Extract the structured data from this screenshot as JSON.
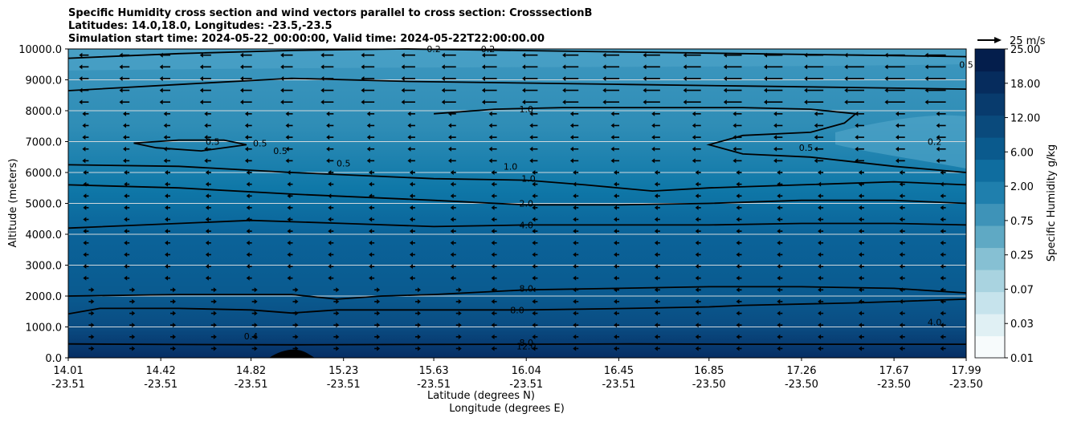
{
  "chart_data": {
    "type": "contourf",
    "title_lines": [
      "Specific Humidity cross section and wind vectors parallel to cross section: CrosssectionB",
      "Latitudes: 14.0,18.0, Longitudes: -23.5,-23.5",
      "Simulation start time: 2024-05-22_00:00:00, Valid time: 2024-05-22T22:00:00.00"
    ],
    "xlabel": "Latitude (degrees N)",
    "xlabel2": "Longitude (degrees E)",
    "ylabel": "Altitude (meters)",
    "x_ticks": [
      {
        "lat": "14.01",
        "lon": "-23.51"
      },
      {
        "lat": "14.42",
        "lon": "-23.51"
      },
      {
        "lat": "14.82",
        "lon": "-23.51"
      },
      {
        "lat": "15.23",
        "lon": "-23.51"
      },
      {
        "lat": "15.63",
        "lon": "-23.51"
      },
      {
        "lat": "16.04",
        "lon": "-23.51"
      },
      {
        "lat": "16.45",
        "lon": "-23.51"
      },
      {
        "lat": "16.85",
        "lon": "-23.50"
      },
      {
        "lat": "17.26",
        "lon": "-23.50"
      },
      {
        "lat": "17.67",
        "lon": "-23.50"
      },
      {
        "lat": "17.99",
        "lon": "-23.50"
      }
    ],
    "y_ticks": [
      "0.0",
      "1000.0",
      "2000.0",
      "3000.0",
      "4000.0",
      "5000.0",
      "6000.0",
      "7000.0",
      "8000.0",
      "9000.0",
      "10000.0"
    ],
    "ylim": [
      0,
      10000
    ],
    "colorbar": {
      "label": "Specific Humidity g/kg",
      "tick_labels": [
        "0.01",
        "0.03",
        "0.07",
        "0.25",
        "0.75",
        "2.00",
        "6.00",
        "12.00",
        "18.00",
        "25.00"
      ]
    },
    "quiver_key": "25 m/s",
    "contour_labels": [
      "0.2",
      "0.2",
      "0.5",
      "0.5",
      "0.5",
      "0.5",
      "0.5",
      "0.5",
      "0.2",
      "1.0",
      "1.0",
      "1.0",
      "2.0",
      "4.0",
      "8.0",
      "8.0",
      "8.0",
      "12.0",
      "4.0",
      "0.4"
    ],
    "contour_lines": [
      {
        "level": 8,
        "points": [
          [
            14.01,
            450
          ],
          [
            14.5,
            430
          ],
          [
            15.0,
            420
          ],
          [
            15.5,
            430
          ],
          [
            16.0,
            440
          ],
          [
            16.5,
            450
          ],
          [
            17.0,
            440
          ],
          [
            17.5,
            440
          ],
          [
            17.99,
            440
          ]
        ]
      },
      {
        "level": 8,
        "points": [
          [
            14.01,
            1420
          ],
          [
            14.15,
            1600
          ],
          [
            14.5,
            1600
          ],
          [
            14.82,
            1550
          ],
          [
            15.0,
            1450
          ],
          [
            15.2,
            1550
          ],
          [
            15.63,
            1550
          ],
          [
            16.04,
            1550
          ],
          [
            16.5,
            1600
          ],
          [
            16.85,
            1650
          ],
          [
            17.0,
            1700
          ],
          [
            17.5,
            1780
          ],
          [
            17.99,
            1900
          ]
        ]
      },
      {
        "level": 8,
        "points": [
          [
            14.01,
            2000
          ],
          [
            14.5,
            2050
          ],
          [
            15.0,
            2050
          ],
          [
            15.2,
            1900
          ],
          [
            15.4,
            2000
          ],
          [
            15.63,
            2050
          ],
          [
            16.04,
            2200
          ],
          [
            16.45,
            2250
          ],
          [
            16.85,
            2300
          ],
          [
            17.26,
            2300
          ],
          [
            17.67,
            2250
          ],
          [
            17.99,
            2100
          ]
        ]
      },
      {
        "level": 4,
        "points": [
          [
            14.01,
            4200
          ],
          [
            14.5,
            4350
          ],
          [
            14.82,
            4450
          ],
          [
            15.23,
            4350
          ],
          [
            15.63,
            4250
          ],
          [
            16.04,
            4300
          ],
          [
            16.45,
            4300
          ],
          [
            16.85,
            4300
          ],
          [
            17.26,
            4350
          ],
          [
            17.67,
            4350
          ],
          [
            17.99,
            4300
          ]
        ]
      },
      {
        "level": 2,
        "points": [
          [
            14.01,
            5600
          ],
          [
            14.5,
            5500
          ],
          [
            15.0,
            5300
          ],
          [
            15.63,
            5100
          ],
          [
            16.04,
            4950
          ],
          [
            16.45,
            4950
          ],
          [
            16.85,
            5000
          ],
          [
            17.26,
            5100
          ],
          [
            17.67,
            5100
          ],
          [
            17.99,
            5000
          ]
        ]
      },
      {
        "level": 1,
        "points": [
          [
            14.01,
            6250
          ],
          [
            14.5,
            6200
          ],
          [
            15.0,
            6000
          ],
          [
            15.63,
            5800
          ],
          [
            16.04,
            5750
          ],
          [
            16.3,
            5600
          ],
          [
            16.6,
            5400
          ],
          [
            16.85,
            5500
          ],
          [
            17.26,
            5600
          ],
          [
            17.67,
            5700
          ],
          [
            17.99,
            5600
          ]
        ]
      },
      {
        "level": 1,
        "points": [
          [
            15.63,
            7900
          ],
          [
            15.9,
            8050
          ],
          [
            16.2,
            8100
          ],
          [
            16.6,
            8100
          ],
          [
            17.0,
            8100
          ],
          [
            17.3,
            8050
          ],
          [
            17.5,
            7900
          ],
          [
            17.45,
            7600
          ],
          [
            17.3,
            7300
          ],
          [
            17.0,
            7200
          ],
          [
            16.85,
            6900
          ],
          [
            17.0,
            6600
          ],
          [
            17.3,
            6500
          ],
          [
            17.67,
            6200
          ],
          [
            17.99,
            6000
          ]
        ]
      },
      {
        "level": 0.5,
        "points": [
          [
            14.01,
            9700
          ],
          [
            14.5,
            9850
          ],
          [
            15.0,
            9950
          ],
          [
            15.5,
            10000
          ],
          [
            16.0,
            9950
          ],
          [
            16.5,
            9900
          ],
          [
            17.0,
            9850
          ],
          [
            17.5,
            9800
          ],
          [
            17.99,
            9750
          ]
        ]
      },
      {
        "level": 0.5,
        "points": [
          [
            14.01,
            8650
          ],
          [
            14.5,
            8850
          ],
          [
            15.0,
            9050
          ],
          [
            15.5,
            8950
          ],
          [
            16.0,
            8900
          ],
          [
            16.5,
            8850
          ],
          [
            17.0,
            8800
          ],
          [
            17.5,
            8750
          ],
          [
            17.99,
            8700
          ]
        ]
      },
      {
        "level": 0.5,
        "points": [
          [
            14.3,
            6950
          ],
          [
            14.5,
            7050
          ],
          [
            14.7,
            7050
          ],
          [
            14.8,
            6900
          ],
          [
            14.6,
            6700
          ],
          [
            14.4,
            6800
          ],
          [
            14.3,
            6950
          ]
        ]
      }
    ],
    "wind": "mostly westward (leftward) vectors; strongest above 8000 m near 17.5°N"
  },
  "colors": {
    "dark": "#0b2a5c",
    "mid": "#0f5d93",
    "light": "#47a0c3",
    "colorbar": [
      "#f7fbfc",
      "#e0f0f4",
      "#c6e3ec",
      "#a9d3e0",
      "#86c0d3",
      "#5fa9c4",
      "#3e93b8",
      "#1f7fad",
      "#0f6d9f",
      "#0a5a8d",
      "#0a4a7c",
      "#083b6d",
      "#062c5d",
      "#041e4c"
    ]
  }
}
